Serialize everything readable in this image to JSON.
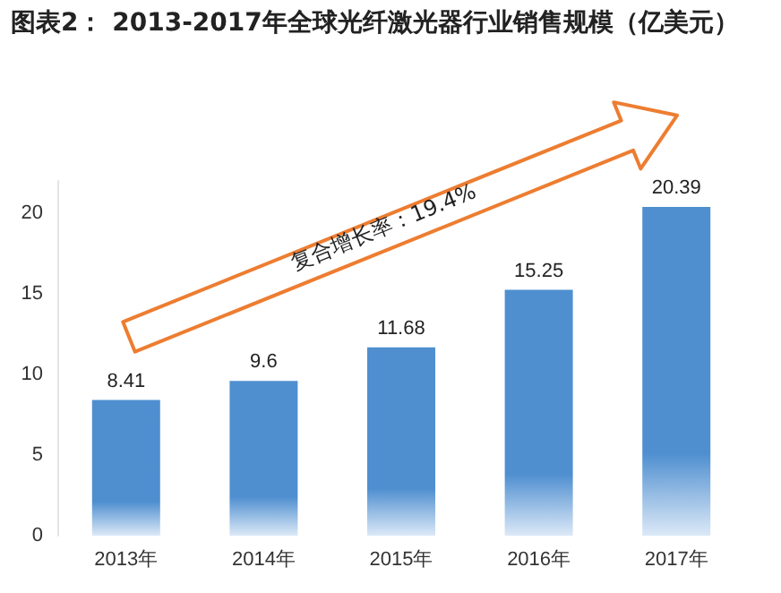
{
  "chart_data": {
    "type": "bar",
    "title": "图表2： 2013-2017年全球光纤激光器行业销售规模（亿美元）",
    "categories": [
      "2013年",
      "2014年",
      "2015年",
      "2016年",
      "2017年"
    ],
    "values": [
      8.41,
      9.6,
      11.68,
      15.25,
      20.39
    ],
    "color": "#4f8fd0",
    "ylim": [
      0,
      22
    ],
    "yticks": [
      0,
      5,
      10,
      15,
      20
    ],
    "grid": false,
    "data_labels": true,
    "annotations": [
      "复合增长率：19.4%"
    ]
  }
}
